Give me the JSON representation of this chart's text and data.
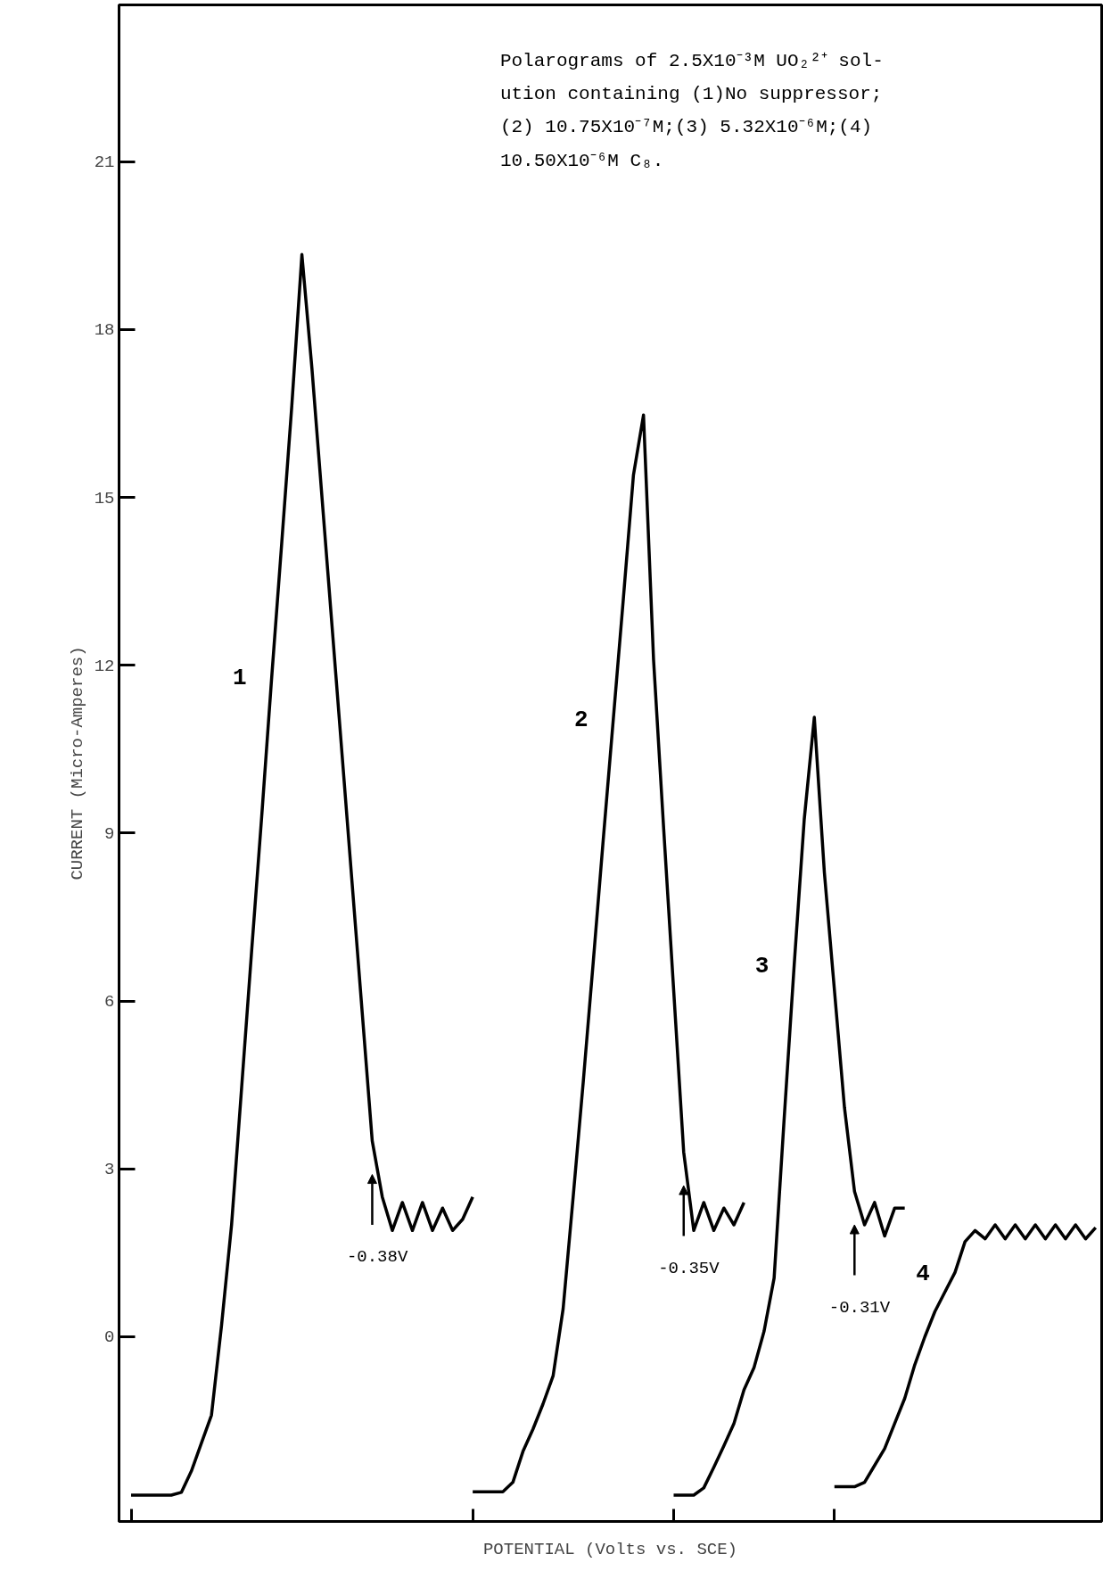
{
  "chart_data": {
    "type": "line",
    "xlabel": "POTENTIAL (Volts vs. SCE)",
    "ylabel": "CURRENT (Micro-Amperes)",
    "annotations": [
      "Polarograms of 2.5X10⁻³M UO₂²⁺ sol-",
      "ution containing (1)No suppressor;",
      "(2) 10.75X10⁻⁷M;(3) 5.32X10⁻⁶M;(4)",
      "10.50X10⁻⁶M C₈.",
      "-0.38V",
      "-0.35V",
      "-0.31V"
    ],
    "categories": [
      null,
      null,
      null,
      null,
      null,
      null,
      null,
      null,
      null,
      null,
      null,
      null,
      null,
      null,
      null,
      null,
      null,
      null,
      null,
      null,
      null,
      null,
      null,
      null,
      null,
      null,
      null,
      null,
      null,
      null,
      null,
      null,
      null,
      null,
      null,
      null,
      null,
      null,
      null,
      null,
      null,
      null,
      null,
      null,
      null,
      null,
      null,
      null,
      null,
      null,
      null,
      null,
      null,
      null,
      null,
      null,
      null,
      null,
      null,
      null,
      null,
      null,
      null,
      null,
      null,
      null,
      null,
      null,
      null,
      null,
      null,
      null,
      null,
      null,
      null,
      null,
      null,
      null,
      null,
      null,
      null,
      null,
      null,
      null,
      null,
      null,
      null,
      null,
      null,
      null,
      null,
      null,
      null,
      null,
      null,
      null,
      null,
      null
    ],
    "series": [
      {
        "name": "1",
        "color": "#000000",
        "values": [
          null,
          -2.83,
          -2.83,
          -2.83,
          -2.83,
          -2.83,
          -2.78,
          -2.4,
          -1.9,
          -1.4,
          0.2,
          2.0,
          4.45,
          6.9,
          9.3,
          11.8,
          14.2,
          16.65,
          19.34,
          17.3,
          15.0,
          12.7,
          10.4,
          8.1,
          5.8,
          3.5,
          2.5,
          1.9,
          2.4,
          1.9,
          2.4,
          1.9,
          2.3,
          1.9,
          2.1,
          2.5,
          null,
          null,
          null,
          null,
          null,
          null,
          null,
          null,
          null,
          null,
          null,
          null,
          null,
          null,
          null,
          null,
          null,
          null,
          null,
          null,
          null,
          null,
          null,
          null,
          null,
          null,
          null,
          null,
          null,
          null,
          null,
          null,
          null,
          null,
          null,
          null,
          null,
          null,
          null,
          null,
          null,
          null,
          null,
          null,
          null,
          null,
          null,
          null,
          null,
          null,
          null,
          null,
          null,
          null,
          null,
          null,
          null,
          null,
          null,
          null,
          null,
          null
        ]
      },
      {
        "name": "2",
        "color": "#000000",
        "values": [
          null,
          null,
          null,
          null,
          null,
          null,
          null,
          null,
          null,
          null,
          null,
          null,
          null,
          null,
          null,
          null,
          null,
          null,
          null,
          null,
          null,
          null,
          null,
          null,
          null,
          null,
          null,
          null,
          null,
          null,
          null,
          null,
          null,
          null,
          null,
          -2.77,
          -2.77,
          -2.77,
          -2.77,
          -2.6,
          -2.05,
          -1.65,
          -1.2,
          -0.7,
          0.5,
          2.5,
          4.55,
          6.7,
          8.9,
          11.05,
          13.2,
          15.4,
          16.47,
          12.1,
          9.1,
          6.2,
          3.3,
          1.9,
          2.4,
          1.9,
          2.3,
          2.0,
          2.4,
          null,
          null,
          null,
          null,
          null,
          null,
          null,
          null,
          null,
          null,
          null,
          null,
          null,
          null,
          null,
          null,
          null,
          null,
          null,
          null,
          null,
          null,
          null,
          null,
          null,
          null,
          null,
          null,
          null,
          null,
          null,
          null,
          null,
          null,
          null
        ]
      },
      {
        "name": "3",
        "color": "#000000",
        "values": [
          null,
          null,
          null,
          null,
          null,
          null,
          null,
          null,
          null,
          null,
          null,
          null,
          null,
          null,
          null,
          null,
          null,
          null,
          null,
          null,
          null,
          null,
          null,
          null,
          null,
          null,
          null,
          null,
          null,
          null,
          null,
          null,
          null,
          null,
          null,
          null,
          null,
          null,
          null,
          null,
          null,
          null,
          null,
          null,
          null,
          null,
          null,
          null,
          null,
          null,
          null,
          null,
          null,
          null,
          null,
          -2.83,
          -2.83,
          -2.83,
          -2.7,
          -2.33,
          -1.95,
          -1.55,
          -0.95,
          -0.55,
          0.1,
          1.05,
          3.9,
          6.65,
          9.25,
          11.07,
          8.3,
          6.2,
          4.1,
          2.6,
          2.0,
          2.4,
          1.8,
          2.3,
          2.3,
          null,
          null,
          null,
          null,
          null,
          null,
          null,
          null,
          null,
          null,
          null,
          null,
          null,
          null,
          null,
          null,
          null,
          null,
          null
        ]
      },
      {
        "name": "4",
        "color": "#000000",
        "values": [
          null,
          null,
          null,
          null,
          null,
          null,
          null,
          null,
          null,
          null,
          null,
          null,
          null,
          null,
          null,
          null,
          null,
          null,
          null,
          null,
          null,
          null,
          null,
          null,
          null,
          null,
          null,
          null,
          null,
          null,
          null,
          null,
          null,
          null,
          null,
          null,
          null,
          null,
          null,
          null,
          null,
          null,
          null,
          null,
          null,
          null,
          null,
          null,
          null,
          null,
          null,
          null,
          null,
          null,
          null,
          null,
          null,
          null,
          null,
          null,
          null,
          null,
          null,
          null,
          null,
          null,
          null,
          null,
          null,
          null,
          null,
          -2.68,
          -2.68,
          -2.68,
          -2.6,
          -2.3,
          -2.0,
          -1.55,
          -1.1,
          -0.5,
          0.0,
          0.45,
          0.8,
          1.15,
          1.7,
          1.9,
          1.75,
          2.0,
          1.75,
          2.0,
          1.75,
          2.0,
          1.75,
          2.0,
          1.75,
          2.0,
          1.75,
          1.95
        ]
      }
    ],
    "ylim": [
      -3.3,
      23.8
    ],
    "yticks": [
      0,
      3,
      6,
      9,
      12,
      15,
      18,
      21
    ],
    "grid": false,
    "marker": "none",
    "line_style": "solid"
  }
}
